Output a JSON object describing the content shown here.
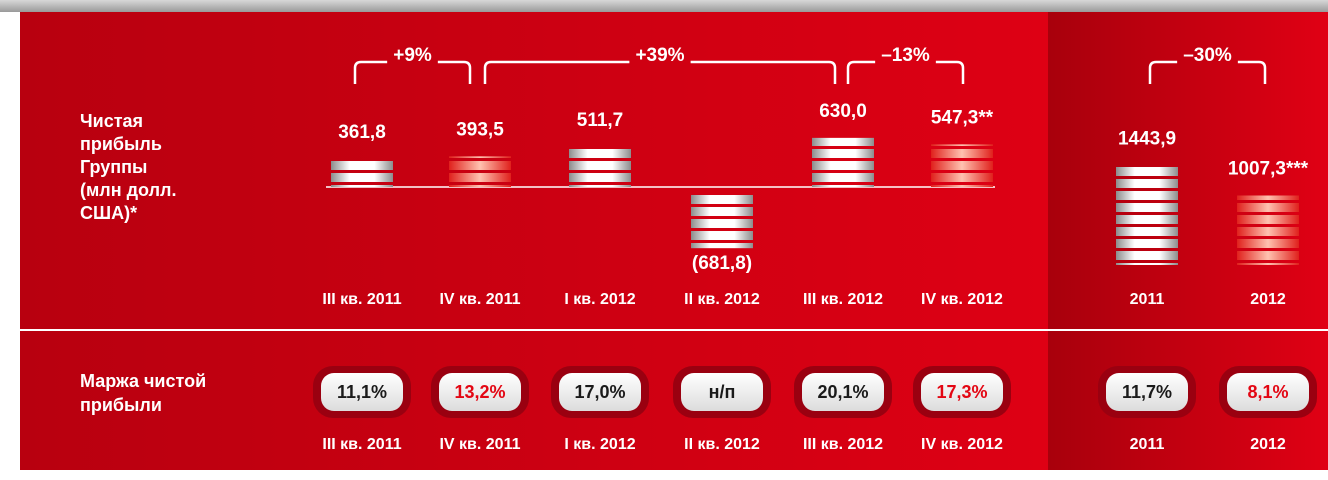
{
  "profit_label": [
    "Чистая",
    "прибыль",
    "Группы",
    "(млн долл.",
    "США)*"
  ],
  "margin_label": [
    "Маржа чистой",
    "прибыли"
  ],
  "chart_data": [
    {
      "type": "bar",
      "categories": [
        "III кв. 2011",
        "IV кв. 2011",
        "I кв. 2012",
        "II кв. 2012",
        "III кв. 2012",
        "IV кв. 2012"
      ],
      "values": [
        361.8,
        393.5,
        511.7,
        -681.8,
        630.0,
        547.3
      ],
      "value_labels": [
        "361,8",
        "393,5",
        "511,7",
        "(681,8)",
        "630,0",
        "547,3**"
      ],
      "colors": [
        "#ffffff",
        "#e8141c",
        "#ffffff",
        "#ffffff",
        "#ffffff",
        "#e8141c"
      ],
      "changes": [
        "+9%",
        "+39%",
        "–13%"
      ]
    },
    {
      "type": "bar",
      "categories": [
        "2011",
        "2012"
      ],
      "values": [
        1443.9,
        1007.3
      ],
      "value_labels": [
        "1443,9",
        "1007,3***"
      ],
      "colors": [
        "#ffffff",
        "#e8141c"
      ],
      "changes": [
        "–30%"
      ]
    }
  ],
  "margin": [
    {
      "categories": [
        "III кв. 2011",
        "IV кв. 2011",
        "I кв. 2012",
        "II кв. 2012",
        "III кв. 2012",
        "IV кв. 2012"
      ],
      "values": [
        "11,1%",
        "13,2%",
        "17,0%",
        "н/п",
        "20,1%",
        "17,3%"
      ],
      "text_colors": [
        "#1a1a1a",
        "#e30613",
        "#1a1a1a",
        "#1a1a1a",
        "#1a1a1a",
        "#e30613"
      ]
    },
    {
      "categories": [
        "2011",
        "2012"
      ],
      "values": [
        "11,7%",
        "8,1%"
      ],
      "text_colors": [
        "#1a1a1a",
        "#e30613"
      ]
    }
  ]
}
